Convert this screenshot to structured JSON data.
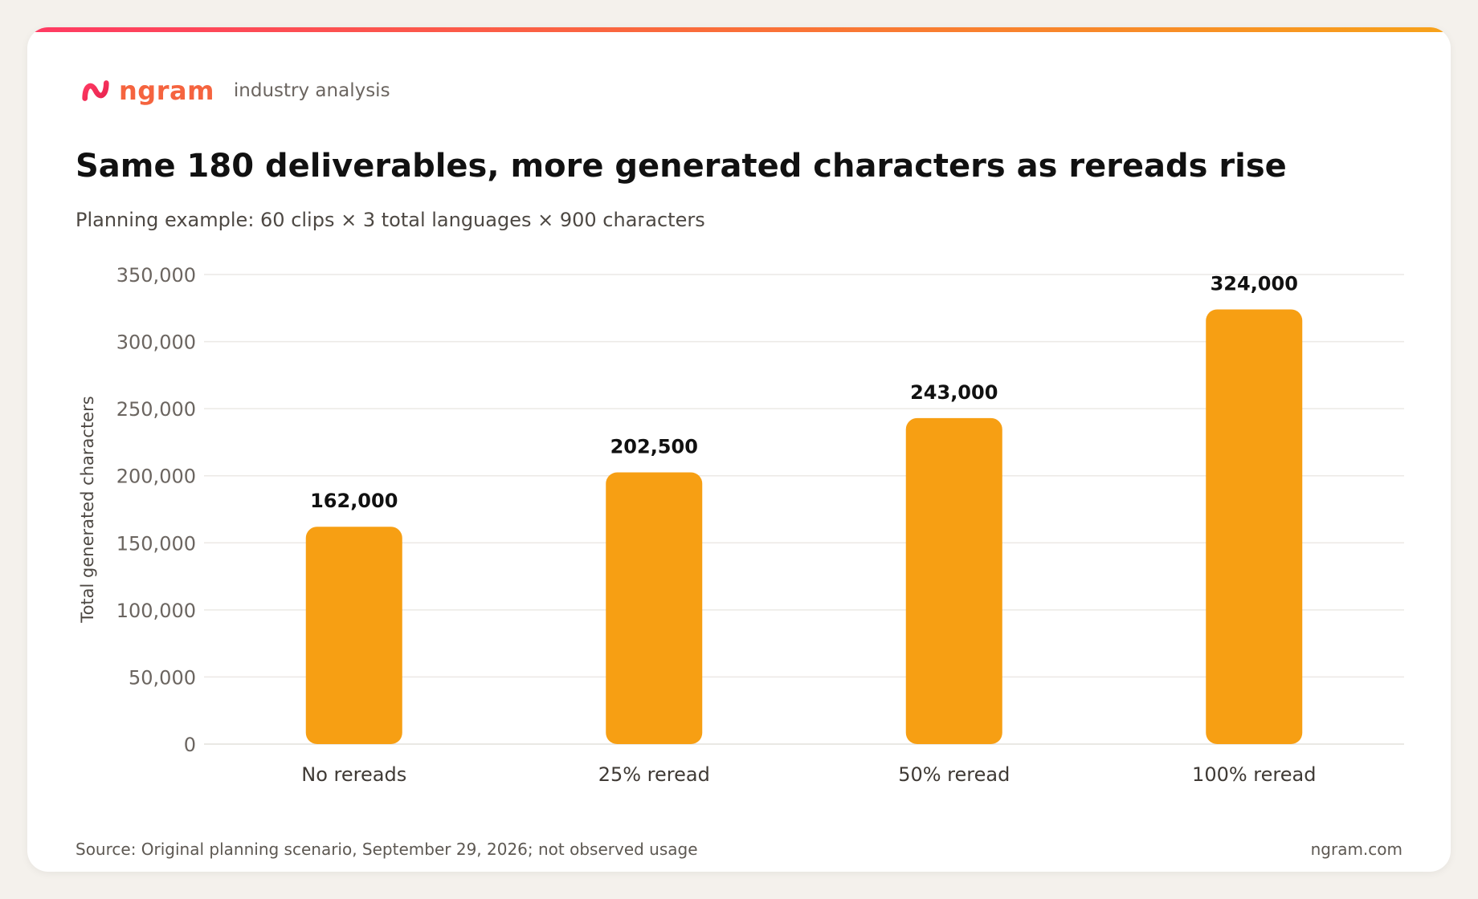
{
  "brand": {
    "name": "ngram",
    "tagline": "industry analysis",
    "colors": {
      "gradient_top": "#ff3a63",
      "gradient_bottom": "#f79f13",
      "accent": "#f5643f"
    }
  },
  "header": {
    "title": "Same 180 deliverables, more generated characters as rereads rise",
    "subtitle": "Planning example: 60 clips × 3 total languages × 900 characters"
  },
  "chart_data": {
    "type": "bar",
    "categories": [
      "No rereads",
      "25% reread",
      "50% reread",
      "100% reread"
    ],
    "values": [
      162000,
      202500,
      243000,
      324000
    ],
    "data_labels": [
      "162,000",
      "202,500",
      "243,000",
      "324,000"
    ],
    "ylabel": "Total generated characters",
    "xlabel": "",
    "ylim": [
      0,
      350000
    ],
    "yticks": [
      0,
      50000,
      100000,
      150000,
      200000,
      250000,
      300000,
      350000
    ],
    "ytick_labels": [
      "0",
      "50,000",
      "100,000",
      "150,000",
      "200,000",
      "250,000",
      "300,000",
      "350,000"
    ],
    "grid": true,
    "legend": "none"
  },
  "footer": {
    "source": "Source: Original planning scenario, September 29, 2026; not observed usage",
    "site": "ngram.com"
  }
}
